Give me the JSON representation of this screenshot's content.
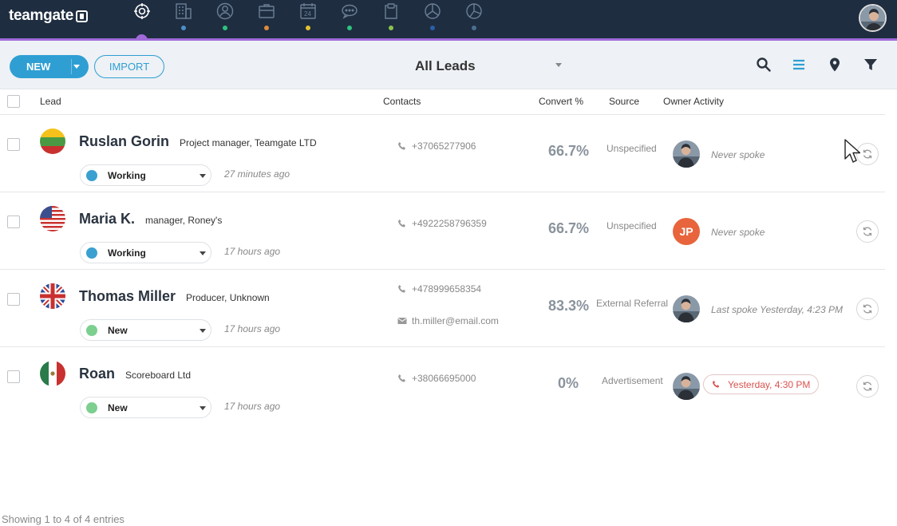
{
  "app": {
    "brand": "teamgate"
  },
  "nav": {
    "items": [
      {
        "name": "dashboard",
        "icon": "target-icon",
        "dot_color": "#a06ad9",
        "active": true
      },
      {
        "name": "companies",
        "icon": "building-icon",
        "dot_color": "#4a90c9"
      },
      {
        "name": "people",
        "icon": "person-icon",
        "dot_color": "#2ec27e"
      },
      {
        "name": "deals",
        "icon": "briefcase-icon",
        "dot_color": "#e08a3c"
      },
      {
        "name": "calendar",
        "icon": "calendar-icon",
        "dot_color": "#e6c12e"
      },
      {
        "name": "chat",
        "icon": "chat-icon",
        "dot_color": "#2ec27e"
      },
      {
        "name": "documents",
        "icon": "clipboard-icon",
        "dot_color": "#8bc34a"
      },
      {
        "name": "reports",
        "icon": "pie-chart-icon",
        "dot_color": "#2a5fa8"
      },
      {
        "name": "analytics",
        "icon": "pie-chart-icon",
        "dot_color": "#4a6f8f"
      }
    ]
  },
  "toolbar": {
    "new_label": "NEW",
    "import_label": "IMPORT",
    "view_label": "All Leads",
    "icons": [
      "search-icon",
      "list-icon",
      "map-pin-icon",
      "filter-icon"
    ],
    "accent_color": "#2f9fd3"
  },
  "table": {
    "headers": {
      "lead": "Lead",
      "contacts": "Contacts",
      "convert": "Convert %",
      "source": "Source",
      "owner_activity": "Owner Activity"
    },
    "rows": [
      {
        "name": "Ruslan Gorin",
        "title": "Project manager, Teamgate LTD",
        "flag": "lithuania",
        "status": "Working",
        "status_color": "#3aa0d0",
        "time_ago": "27 minutes ago",
        "phone": "+37065277906",
        "email": "",
        "convert": "66.7%",
        "source": "Unspecified",
        "owner": "photo",
        "owner_initials": "",
        "activity": "Never spoke",
        "activity_alert": false
      },
      {
        "name": "Maria K.",
        "title": "manager, Roney's",
        "flag": "usa",
        "status": "Working",
        "status_color": "#3aa0d0",
        "time_ago": "17 hours ago",
        "phone": "+4922258796359",
        "email": "",
        "convert": "66.7%",
        "source": "Unspecified",
        "owner": "initials",
        "owner_initials": "JP",
        "activity": "Never spoke",
        "activity_alert": false
      },
      {
        "name": "Thomas Miller",
        "title": "Producer, Unknown",
        "flag": "uk",
        "status": "New",
        "status_color": "#7ccf8f",
        "time_ago": "17 hours ago",
        "phone": "+478999658354",
        "email": "th.miller@email.com",
        "convert": "83.3%",
        "source": "External Referral",
        "owner": "photo",
        "owner_initials": "",
        "activity": "Last spoke Yesterday, 4:23 PM",
        "activity_alert": false
      },
      {
        "name": "Roan",
        "title": "Scoreboard Ltd",
        "flag": "mexico",
        "status": "New",
        "status_color": "#7ccf8f",
        "time_ago": "17 hours ago",
        "phone": "+38066695000",
        "email": "",
        "convert": "0%",
        "source": "Advertisement",
        "owner": "photo",
        "owner_initials": "",
        "activity": "Yesterday, 4:30 PM",
        "activity_alert": true
      }
    ]
  },
  "footer": {
    "entries": "Showing 1 to 4 of 4 entries"
  }
}
